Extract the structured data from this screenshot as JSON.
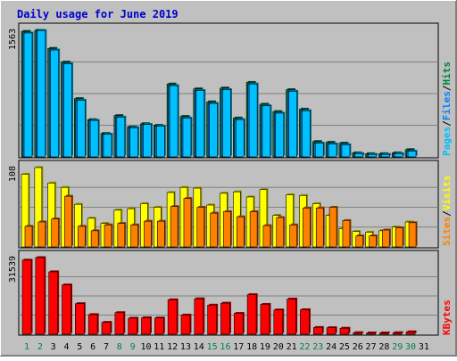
{
  "title": "Daily usage for June 2019",
  "colors": {
    "background": "#c0c0c0",
    "title": "#0000cc",
    "hits": "#008040",
    "files": "#0080ff",
    "pages": "#00c0ff",
    "visits": "#ffff00",
    "sites": "#ff8000",
    "kbytes": "#ff0000",
    "separator": "#000000",
    "day_weekend": "#008040",
    "day_weekday": "#000000"
  },
  "chart_data": [
    {
      "type": "bar",
      "panel": "hits-files-pages",
      "ytick_label": "1563",
      "ylim": [
        0,
        1563
      ],
      "legend": {
        "pages": "Pages",
        "sep1": "/",
        "files": "Files",
        "sep2": "/",
        "hits": "Hits"
      },
      "categories": [
        "1",
        "2",
        "3",
        "4",
        "5",
        "6",
        "7",
        "8",
        "9",
        "10",
        "11",
        "12",
        "13",
        "14",
        "15",
        "16",
        "17",
        "18",
        "19",
        "20",
        "21",
        "22",
        "23",
        "24",
        "25",
        "26",
        "27",
        "28",
        "29",
        "30",
        "31"
      ],
      "series": [
        {
          "name": "Hits",
          "values": [
            1550,
            1563,
            1340,
            1170,
            720,
            460,
            290,
            510,
            370,
            410,
            390,
            900,
            500,
            840,
            680,
            850,
            480,
            920,
            650,
            560,
            830,
            590,
            190,
            180,
            170,
            50,
            40,
            40,
            50,
            90,
            0
          ]
        },
        {
          "name": "Files",
          "values": [
            1530,
            1560,
            1320,
            1150,
            700,
            450,
            280,
            490,
            360,
            400,
            380,
            880,
            480,
            820,
            660,
            830,
            460,
            900,
            630,
            540,
            810,
            570,
            170,
            160,
            150,
            40,
            30,
            30,
            40,
            70,
            0
          ]
        },
        {
          "name": "Pages",
          "values": [
            1530,
            1560,
            1320,
            1150,
            700,
            450,
            280,
            490,
            360,
            400,
            380,
            880,
            480,
            820,
            660,
            830,
            460,
            900,
            630,
            540,
            810,
            570,
            170,
            160,
            150,
            40,
            30,
            30,
            40,
            70,
            0
          ]
        }
      ]
    },
    {
      "type": "bar",
      "panel": "visits-sites",
      "ytick_label": "108",
      "ylim": [
        0,
        108
      ],
      "legend": {
        "sites": "Sites",
        "sep1": "/",
        "visits": "Visits"
      },
      "categories": [
        "1",
        "2",
        "3",
        "4",
        "5",
        "6",
        "7",
        "8",
        "9",
        "10",
        "11",
        "12",
        "13",
        "14",
        "15",
        "16",
        "17",
        "18",
        "19",
        "20",
        "21",
        "22",
        "23",
        "24",
        "25",
        "26",
        "27",
        "28",
        "29",
        "30",
        "31"
      ],
      "series": [
        {
          "name": "Visits",
          "values": [
            99,
            108,
            87,
            81,
            58,
            39,
            32,
            50,
            52,
            59,
            54,
            74,
            81,
            80,
            57,
            73,
            75,
            68,
            78,
            43,
            71,
            70,
            59,
            43,
            25,
            21,
            20,
            22,
            27,
            34,
            0
          ]
        },
        {
          "name": "Sites",
          "values": [
            28,
            34,
            38,
            69,
            28,
            22,
            30,
            32,
            30,
            35,
            35,
            55,
            66,
            54,
            46,
            48,
            41,
            48,
            29,
            40,
            30,
            53,
            53,
            54,
            36,
            15,
            15,
            23,
            26,
            33,
            0
          ]
        }
      ]
    },
    {
      "type": "bar",
      "panel": "kbytes",
      "ytick_label": "31539",
      "ylim": [
        0,
        31539
      ],
      "legend": {
        "kbytes": "KBytes"
      },
      "categories": [
        "1",
        "2",
        "3",
        "4",
        "5",
        "6",
        "7",
        "8",
        "9",
        "10",
        "11",
        "12",
        "13",
        "14",
        "15",
        "16",
        "17",
        "18",
        "19",
        "20",
        "21",
        "22",
        "23",
        "24",
        "25",
        "26",
        "27",
        "28",
        "29",
        "30",
        "31"
      ],
      "series": [
        {
          "name": "KBytes",
          "values": [
            30500,
            31539,
            25700,
            20300,
            12600,
            8100,
            4900,
            8900,
            6600,
            6800,
            6700,
            14200,
            7900,
            14600,
            12000,
            12800,
            8600,
            16300,
            12300,
            10000,
            14500,
            10100,
            2800,
            2700,
            2500,
            650,
            560,
            560,
            650,
            1000,
            0
          ]
        }
      ]
    }
  ]
}
